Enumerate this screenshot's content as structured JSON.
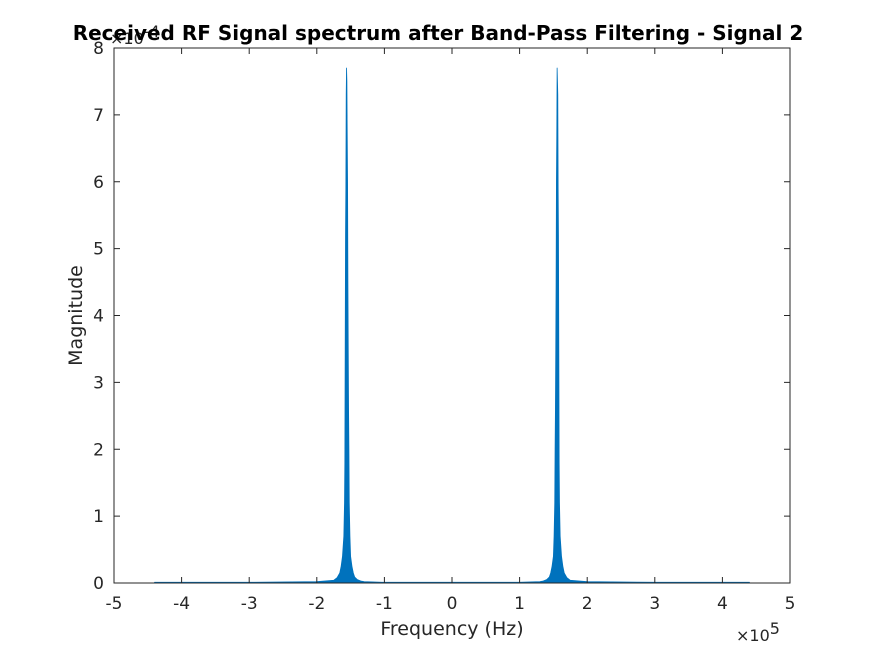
{
  "chart_data": {
    "type": "area",
    "title": "Received RF Signal spectrum after Band-Pass Filtering - Signal  2",
    "xlabel": "Frequency (Hz)",
    "ylabel": "Magnitude",
    "xlim": [
      -500000,
      500000
    ],
    "ylim": [
      0,
      0.0008
    ],
    "x_ticks": [
      -500000,
      -400000,
      -300000,
      -200000,
      -100000,
      0,
      100000,
      200000,
      300000,
      400000,
      500000
    ],
    "x_tick_labels": [
      "-5",
      "-4",
      "-3",
      "-2",
      "-1",
      "0",
      "1",
      "2",
      "3",
      "4",
      "5"
    ],
    "y_ticks": [
      0,
      0.0001,
      0.0002,
      0.0003,
      0.0004,
      0.0005,
      0.0006,
      0.0007,
      0.0008
    ],
    "y_tick_labels": [
      "0",
      "1",
      "2",
      "3",
      "4",
      "5",
      "6",
      "7",
      "8"
    ],
    "x_exponent_prefix": "×10",
    "x_exponent_power": "5",
    "y_exponent_prefix": "×10",
    "y_exponent_power": "-4",
    "grid": false,
    "series": [
      {
        "color": "#0072BD",
        "x": [
          -440000,
          -300000,
          -200000,
          -175000,
          -170000,
          -166000,
          -164000,
          -162000,
          -160000,
          -159000,
          -158500,
          -158000,
          -157500,
          -157000,
          -156500,
          -156000,
          -155500,
          -155000,
          -154500,
          -154000,
          -153500,
          -153000,
          -152500,
          -152000,
          -151000,
          -150000,
          -148000,
          -146000,
          -144000,
          -140000,
          -135000,
          -130000,
          -100000,
          0,
          100000,
          130000,
          135000,
          140000,
          144000,
          146000,
          148000,
          150000,
          151000,
          152000,
          152500,
          153000,
          153500,
          154000,
          154500,
          155000,
          155500,
          156000,
          156500,
          157000,
          157500,
          158000,
          158500,
          159000,
          160000,
          162000,
          164000,
          166000,
          170000,
          175000,
          200000,
          300000,
          440000
        ],
        "y": [
          1e-06,
          1e-06,
          2e-06,
          4e-06,
          8e-06,
          1.5e-05,
          2.5e-05,
          4e-05,
          7e-05,
          0.00012,
          0.00018,
          0.00035,
          0.00052,
          0.00059,
          0.00073,
          0.00077,
          0.00075,
          0.00067,
          0.0006,
          0.00045,
          0.00035,
          0.00026,
          0.0002,
          0.00012,
          7e-05,
          4e-05,
          2.5e-05,
          1.5e-05,
          9e-06,
          5e-06,
          3e-06,
          2e-06,
          1e-06,
          1e-06,
          1e-06,
          2e-06,
          3e-06,
          5e-06,
          9e-06,
          1.5e-05,
          2.5e-05,
          4e-05,
          7e-05,
          0.00012,
          0.0002,
          0.00026,
          0.00035,
          0.00045,
          0.0006,
          0.00067,
          0.00077,
          0.00075,
          0.00073,
          0.00059,
          0.00052,
          0.00035,
          0.00018,
          0.00012,
          7e-05,
          4e-05,
          2.5e-05,
          1.5e-05,
          8e-06,
          4e-06,
          2e-06,
          1e-06,
          1e-06
        ]
      }
    ]
  }
}
